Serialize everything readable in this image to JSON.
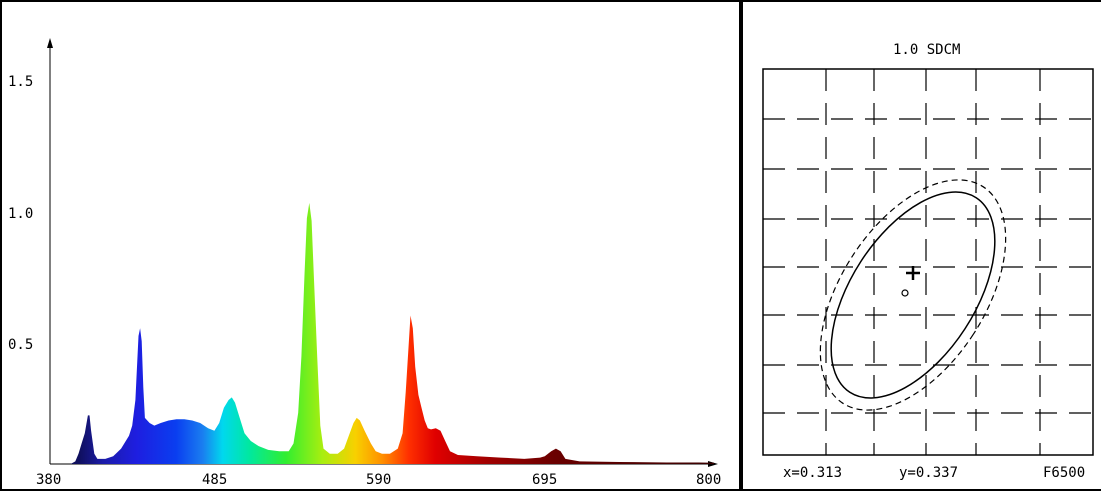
{
  "chart_data": [
    {
      "type": "area",
      "title": "",
      "xlabel": "",
      "ylabel": "",
      "xlim": [
        380,
        800
      ],
      "ylim": [
        0,
        1.65
      ],
      "x_ticks": [
        "380",
        "485",
        "590",
        "695",
        "800"
      ],
      "y_ticks": [
        "0.5",
        "1.0",
        "1.5"
      ],
      "grid": false,
      "series": [
        {
          "points": [
            [
              380,
              0
            ],
            [
              393,
              0
            ],
            [
              396,
              0.01
            ],
            [
              398,
              0.04
            ],
            [
              400,
              0.08
            ],
            [
              402,
              0.12
            ],
            [
              404,
              0.19
            ],
            [
              405,
              0.19
            ],
            [
              406,
              0.13
            ],
            [
              408,
              0.04
            ],
            [
              410,
              0.02
            ],
            [
              415,
              0.02
            ],
            [
              420,
              0.03
            ],
            [
              425,
              0.06
            ],
            [
              430,
              0.11
            ],
            [
              432,
              0.15
            ],
            [
              434,
              0.25
            ],
            [
              435,
              0.38
            ],
            [
              436,
              0.5
            ],
            [
              437,
              0.53
            ],
            [
              438,
              0.48
            ],
            [
              439,
              0.3
            ],
            [
              440,
              0.18
            ],
            [
              443,
              0.16
            ],
            [
              446,
              0.15
            ],
            [
              450,
              0.16
            ],
            [
              455,
              0.17
            ],
            [
              460,
              0.175
            ],
            [
              465,
              0.175
            ],
            [
              470,
              0.17
            ],
            [
              475,
              0.16
            ],
            [
              480,
              0.14
            ],
            [
              484,
              0.13
            ],
            [
              487,
              0.16
            ],
            [
              490,
              0.22
            ],
            [
              493,
              0.25
            ],
            [
              495,
              0.26
            ],
            [
              497,
              0.24
            ],
            [
              500,
              0.18
            ],
            [
              503,
              0.12
            ],
            [
              507,
              0.09
            ],
            [
              512,
              0.07
            ],
            [
              518,
              0.055
            ],
            [
              525,
              0.05
            ],
            [
              531,
              0.05
            ],
            [
              534,
              0.08
            ],
            [
              537,
              0.2
            ],
            [
              539,
              0.42
            ],
            [
              541,
              0.74
            ],
            [
              542.5,
              0.96
            ],
            [
              544,
              1.02
            ],
            [
              545.5,
              0.95
            ],
            [
              547,
              0.72
            ],
            [
              549,
              0.42
            ],
            [
              551,
              0.15
            ],
            [
              553,
              0.06
            ],
            [
              557,
              0.04
            ],
            [
              562,
              0.04
            ],
            [
              566,
              0.06
            ],
            [
              569,
              0.11
            ],
            [
              572,
              0.16
            ],
            [
              574,
              0.18
            ],
            [
              576,
              0.17
            ],
            [
              579,
              0.13
            ],
            [
              583,
              0.08
            ],
            [
              586,
              0.05
            ],
            [
              590,
              0.04
            ],
            [
              595,
              0.04
            ],
            [
              600,
              0.06
            ],
            [
              603,
              0.12
            ],
            [
              605,
              0.28
            ],
            [
              607,
              0.48
            ],
            [
              608,
              0.58
            ],
            [
              609.5,
              0.53
            ],
            [
              611,
              0.38
            ],
            [
              613,
              0.27
            ],
            [
              615,
              0.22
            ],
            [
              617,
              0.17
            ],
            [
              619,
              0.14
            ],
            [
              621,
              0.135
            ],
            [
              624,
              0.14
            ],
            [
              627,
              0.13
            ],
            [
              630,
              0.09
            ],
            [
              633,
              0.05
            ],
            [
              638,
              0.035
            ],
            [
              650,
              0.03
            ],
            [
              665,
              0.025
            ],
            [
              680,
              0.02
            ],
            [
              690,
              0.025
            ],
            [
              693,
              0.03
            ],
            [
              697,
              0.05
            ],
            [
              700,
              0.06
            ],
            [
              703,
              0.05
            ],
            [
              706,
              0.02
            ],
            [
              715,
              0.01
            ],
            [
              740,
              0.008
            ],
            [
              770,
              0.006
            ],
            [
              790,
              0.006
            ],
            [
              800,
              0.005
            ]
          ]
        }
      ]
    },
    {
      "type": "scatter",
      "title": "1.0 SDCM",
      "xlabel": "",
      "ylabel": "",
      "grid": true,
      "x": "x=0.313",
      "y": "y=0.337",
      "reference": "F6500",
      "measured_point": {
        "x": 0.313,
        "y": 0.337
      }
    }
  ]
}
